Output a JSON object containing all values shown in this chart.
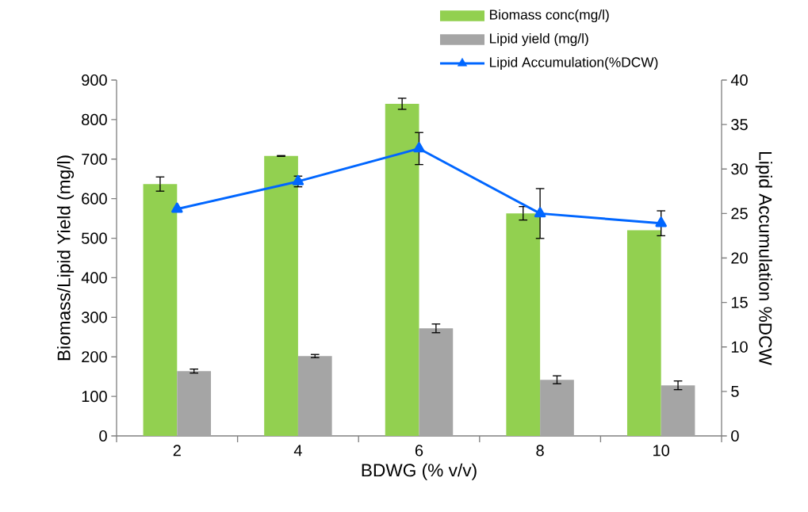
{
  "chart_data": {
    "type": "bar",
    "xlabel": "BDWG (% v/v)",
    "ylabel": "Biomass/Lipid Yield (mg/l)",
    "y2label": "Lipid Accumulation %DCW",
    "categories": [
      "2",
      "4",
      "6",
      "8",
      "10"
    ],
    "series": [
      {
        "name": "Biomass conc(mg/l)",
        "color": "#92d050",
        "values": [
          637,
          708,
          840,
          563,
          520
        ],
        "errors": [
          18,
          1,
          14,
          17,
          null
        ]
      },
      {
        "name": "Lipid yield (mg/l)",
        "color": "#a5a5a5",
        "values": [
          164,
          202,
          272,
          142,
          128
        ],
        "errors": [
          5,
          4,
          11,
          10,
          11
        ]
      },
      {
        "name": "Lipid Accumulation(%DCW)",
        "type": "line",
        "axis": "y2",
        "color": "#0066ff",
        "marker": "triangle",
        "line_style": "solid",
        "values": [
          25.5,
          28.6,
          32.3,
          25.0,
          23.9
        ],
        "errors": [
          null,
          0.6,
          1.8,
          2.8,
          1.4
        ]
      }
    ],
    "ylim": [
      0,
      900
    ],
    "yticks": [
      0,
      100,
      200,
      300,
      400,
      500,
      600,
      700,
      800,
      900
    ],
    "y2lim": [
      0,
      40
    ],
    "y2ticks": [
      0,
      5,
      10,
      15,
      20,
      25,
      30,
      35,
      40
    ],
    "grid": false,
    "legend": "top right"
  }
}
